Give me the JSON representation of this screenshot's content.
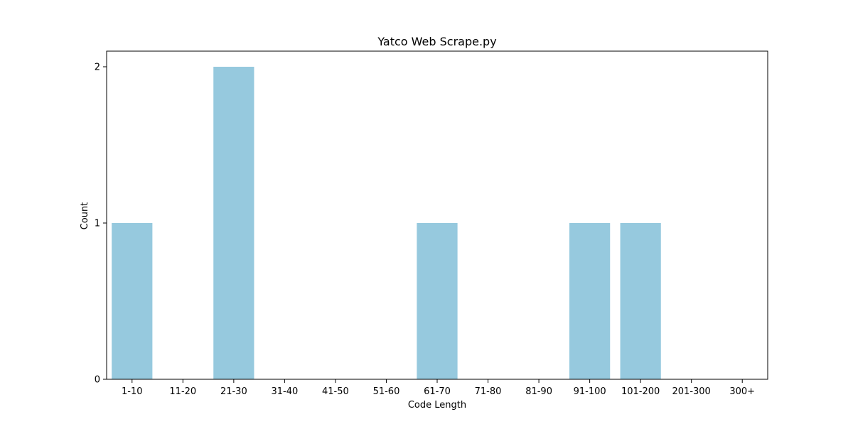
{
  "chart_data": {
    "type": "bar",
    "title": "Yatco Web Scrape.py",
    "xlabel": "Code Length",
    "ylabel": "Count",
    "categories": [
      "1-10",
      "11-20",
      "21-30",
      "31-40",
      "41-50",
      "51-60",
      "61-70",
      "71-80",
      "81-90",
      "91-100",
      "101-200",
      "201-300",
      "300+"
    ],
    "values": [
      1,
      0,
      2,
      0,
      0,
      0,
      1,
      0,
      0,
      1,
      1,
      0,
      0
    ],
    "yticks": [
      0,
      1,
      2
    ],
    "ylim": [
      0,
      2.1
    ],
    "grid": false,
    "bar_color": "#96c9de"
  }
}
